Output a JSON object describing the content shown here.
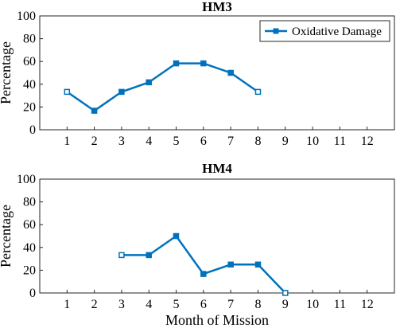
{
  "chart_data": [
    {
      "type": "line",
      "title": "HM3",
      "xlabel": "",
      "ylabel": "Percentage",
      "x_ticks": [
        "1",
        "2",
        "3",
        "4",
        "5",
        "6",
        "7",
        "8",
        "9",
        "10",
        "11",
        "12"
      ],
      "y_ticks": [
        "0",
        "20",
        "40",
        "60",
        "80",
        "100"
      ],
      "xlim": [
        0,
        13
      ],
      "ylim": [
        0,
        100
      ],
      "legend": "top-right",
      "series": [
        {
          "name": "Oxidative Damage",
          "color": "#0072BD",
          "marker": "square",
          "x": [
            1,
            2,
            3,
            4,
            5,
            6,
            7,
            8
          ],
          "y": [
            33.3,
            16.7,
            33.3,
            41.7,
            58.3,
            58.3,
            50,
            33.3
          ],
          "hollow_markers_at": [
            1,
            8
          ]
        }
      ]
    },
    {
      "type": "line",
      "title": "HM4",
      "xlabel": "Month of Mission",
      "ylabel": "Percentage",
      "x_ticks": [
        "1",
        "2",
        "3",
        "4",
        "5",
        "6",
        "7",
        "8",
        "9",
        "10",
        "11",
        "12"
      ],
      "y_ticks": [
        "0",
        "20",
        "40",
        "60",
        "80",
        "100"
      ],
      "xlim": [
        0,
        13
      ],
      "ylim": [
        0,
        100
      ],
      "series": [
        {
          "color": "#0072BD",
          "marker": "square",
          "x": [
            3,
            4,
            5,
            6,
            7,
            8,
            9
          ],
          "y": [
            33.3,
            33.3,
            50,
            16.7,
            25,
            25,
            0
          ],
          "hollow_markers_at": [
            3,
            9
          ]
        }
      ]
    }
  ]
}
